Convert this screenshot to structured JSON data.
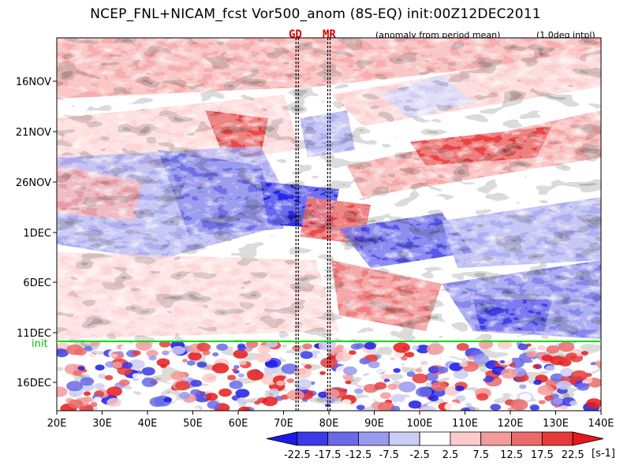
{
  "chart_data": {
    "type": "heatmap",
    "title": "NCEP_FNL+NICAM_fcst Vor500_anom (8S-EQ) init:00Z12DEC2011",
    "subtitle_note": "(anomaly from period mean)",
    "resolution_note": "(1.0deg intpl)",
    "x_axis": {
      "ticks": [
        "20E",
        "30E",
        "40E",
        "50E",
        "60E",
        "70E",
        "80E",
        "90E",
        "100E",
        "110E",
        "120E",
        "130E",
        "140E"
      ],
      "range": [
        20,
        140
      ]
    },
    "y_axis": {
      "ticks": [
        "16NOV",
        "21NOV",
        "26NOV",
        "1DEC",
        "6DEC",
        "11DEC",
        "16DEC"
      ]
    },
    "markers": [
      {
        "label": "GD",
        "lon": 73
      },
      {
        "label": "MR",
        "lon": 80
      }
    ],
    "init_label": "init",
    "colorbar": {
      "levels": [
        "-22.5",
        "-17.5",
        "-12.5",
        "-7.5",
        "-2.5",
        "2.5",
        "7.5",
        "12.5",
        "17.5",
        "22.5"
      ],
      "colors": [
        "#1a1ae6",
        "#3a3ae6",
        "#6a6ae6",
        "#9a9aee",
        "#cccdf6",
        "#ffffff",
        "#fccaca",
        "#f49a9a",
        "#ec6a6a",
        "#e63a3a",
        "#e61a1a"
      ],
      "unit": "[s-1]"
    }
  },
  "colors": {
    "init_line": "#00dd00",
    "frame": "#000000"
  }
}
